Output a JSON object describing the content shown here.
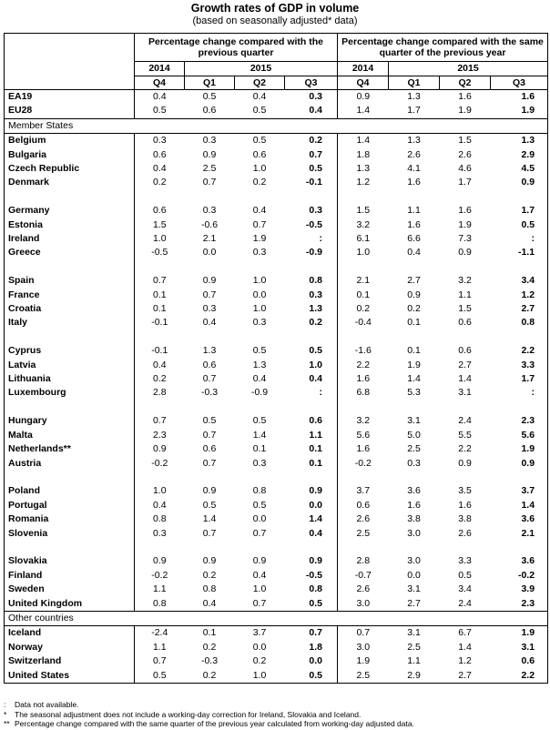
{
  "title": "Growth rates of GDP in volume",
  "subtitle": "(based on seasonally adjusted* data)",
  "header": {
    "group1": "Percentage change compared with the previous quarter",
    "group2": "Percentage change compared with the same quarter of the previous year",
    "year1": "2014",
    "year2": "2015",
    "quarters": [
      "Q4",
      "Q1",
      "Q2",
      "Q3",
      "Q4",
      "Q1",
      "Q2",
      "Q3"
    ]
  },
  "rows": [
    {
      "name": "EA19",
      "v": [
        "0.4",
        "0.5",
        "0.4",
        "0.3",
        "0.9",
        "1.3",
        "1.6",
        "1.6"
      ]
    },
    {
      "name": "EU28",
      "v": [
        "0.5",
        "0.6",
        "0.5",
        "0.4",
        "1.4",
        "1.7",
        "1.9",
        "1.9"
      ]
    },
    {
      "section": "Member States"
    },
    {
      "name": "Belgium",
      "v": [
        "0.3",
        "0.3",
        "0.5",
        "0.2",
        "1.4",
        "1.3",
        "1.5",
        "1.3"
      ]
    },
    {
      "name": "Bulgaria",
      "v": [
        "0.6",
        "0.9",
        "0.6",
        "0.7",
        "1.8",
        "2.6",
        "2.6",
        "2.9"
      ]
    },
    {
      "name": "Czech Republic",
      "v": [
        "0.4",
        "2.5",
        "1.0",
        "0.5",
        "1.3",
        "4.1",
        "4.6",
        "4.5"
      ]
    },
    {
      "name": "Denmark",
      "v": [
        "0.2",
        "0.7",
        "0.2",
        "-0.1",
        "1.2",
        "1.6",
        "1.7",
        "0.9"
      ]
    },
    {
      "blank": true
    },
    {
      "name": "Germany",
      "v": [
        "0.6",
        "0.3",
        "0.4",
        "0.3",
        "1.5",
        "1.1",
        "1.6",
        "1.7"
      ]
    },
    {
      "name": "Estonia",
      "v": [
        "1.5",
        "-0.6",
        "0.7",
        "-0.5",
        "3.2",
        "1.6",
        "1.9",
        "0.5"
      ]
    },
    {
      "name": "Ireland",
      "v": [
        "1.0",
        "2.1",
        "1.9",
        ":",
        "6.1",
        "6.6",
        "7.3",
        ":"
      ]
    },
    {
      "name": "Greece",
      "v": [
        "-0.5",
        "0.0",
        "0.3",
        "-0.9",
        "1.0",
        "0.4",
        "0.9",
        "-1.1"
      ]
    },
    {
      "blank": true
    },
    {
      "name": "Spain",
      "v": [
        "0.7",
        "0.9",
        "1.0",
        "0.8",
        "2.1",
        "2.7",
        "3.2",
        "3.4"
      ]
    },
    {
      "name": "France",
      "v": [
        "0.1",
        "0.7",
        "0.0",
        "0.3",
        "0.1",
        "0.9",
        "1.1",
        "1.2"
      ]
    },
    {
      "name": "Croatia",
      "v": [
        "0.1",
        "0.3",
        "1.0",
        "1.3",
        "0.2",
        "0.2",
        "1.5",
        "2.7"
      ]
    },
    {
      "name": "Italy",
      "v": [
        "-0.1",
        "0.4",
        "0.3",
        "0.2",
        "-0.4",
        "0.1",
        "0.6",
        "0.8"
      ]
    },
    {
      "blank": true
    },
    {
      "name": "Cyprus",
      "v": [
        "-0.1",
        "1.3",
        "0.5",
        "0.5",
        "-1.6",
        "0.1",
        "0.6",
        "2.2"
      ]
    },
    {
      "name": "Latvia",
      "v": [
        "0.4",
        "0.6",
        "1.3",
        "1.0",
        "2.2",
        "1.9",
        "2.7",
        "3.3"
      ]
    },
    {
      "name": "Lithuania",
      "v": [
        "0.2",
        "0.7",
        "0.4",
        "0.4",
        "1.6",
        "1.4",
        "1.4",
        "1.7"
      ]
    },
    {
      "name": "Luxembourg",
      "v": [
        "2.8",
        "-0.3",
        "-0.9",
        ":",
        "6.8",
        "5.3",
        "3.1",
        ":"
      ]
    },
    {
      "blank": true
    },
    {
      "name": "Hungary",
      "v": [
        "0.7",
        "0.5",
        "0.5",
        "0.6",
        "3.2",
        "3.1",
        "2.4",
        "2.3"
      ]
    },
    {
      "name": "Malta",
      "v": [
        "2.3",
        "0.7",
        "1.4",
        "1.1",
        "5.6",
        "5.0",
        "5.5",
        "5.6"
      ]
    },
    {
      "name": "Netherlands**",
      "v": [
        "0.9",
        "0.6",
        "0.1",
        "0.1",
        "1.6",
        "2.5",
        "2.2",
        "1.9"
      ]
    },
    {
      "name": "Austria",
      "v": [
        "-0.2",
        "0.7",
        "0.3",
        "0.1",
        "-0.2",
        "0.3",
        "0.9",
        "0.9"
      ]
    },
    {
      "blank": true
    },
    {
      "name": "Poland",
      "v": [
        "1.0",
        "0.9",
        "0.8",
        "0.9",
        "3.7",
        "3.6",
        "3.5",
        "3.7"
      ]
    },
    {
      "name": "Portugal",
      "v": [
        "0.4",
        "0.5",
        "0.5",
        "0.0",
        "0.6",
        "1.6",
        "1.6",
        "1.4"
      ]
    },
    {
      "name": "Romania",
      "v": [
        "0.8",
        "1.4",
        "0.0",
        "1.4",
        "2.6",
        "3.8",
        "3.8",
        "3.6"
      ]
    },
    {
      "name": "Slovenia",
      "v": [
        "0.3",
        "0.7",
        "0.7",
        "0.4",
        "2.5",
        "3.0",
        "2.6",
        "2.1"
      ]
    },
    {
      "blank": true
    },
    {
      "name": "Slovakia",
      "v": [
        "0.9",
        "0.9",
        "0.9",
        "0.9",
        "2.8",
        "3.0",
        "3.3",
        "3.6"
      ]
    },
    {
      "name": "Finland",
      "v": [
        "-0.2",
        "0.2",
        "0.4",
        "-0.5",
        "-0.7",
        "0.0",
        "0.5",
        "-0.2"
      ]
    },
    {
      "name": "Sweden",
      "v": [
        "1.1",
        "0.8",
        "1.0",
        "0.8",
        "2.6",
        "3.1",
        "3.4",
        "3.9"
      ]
    },
    {
      "name": "United Kingdom",
      "v": [
        "0.8",
        "0.4",
        "0.7",
        "0.5",
        "3.0",
        "2.7",
        "2.4",
        "2.3"
      ]
    },
    {
      "section": "Other countries"
    },
    {
      "name": "Iceland",
      "v": [
        "-2.4",
        "0.1",
        "3.7",
        "0.7",
        "0.7",
        "3.1",
        "6.7",
        "1.9"
      ]
    },
    {
      "name": "Norway",
      "v": [
        "1.1",
        "0.2",
        "0.0",
        "1.8",
        "3.0",
        "2.5",
        "1.4",
        "3.1"
      ]
    },
    {
      "name": "Switzerland",
      "v": [
        "0.7",
        "-0.3",
        "0.2",
        "0.0",
        "1.9",
        "1.1",
        "1.2",
        "0.6"
      ]
    },
    {
      "name": "United States",
      "v": [
        "0.5",
        "0.2",
        "1.0",
        "0.5",
        "2.5",
        "2.9",
        "2.7",
        "2.2"
      ]
    }
  ],
  "notes": [
    {
      "sym": ":",
      "text": "Data not available."
    },
    {
      "sym": "*",
      "text": "The seasonal adjustment does not include a working-day correction for Ireland, Slovakia and Iceland."
    },
    {
      "sym": "**",
      "text": "Percentage change compared with the same quarter of the previous year calculated from working-day adjusted data."
    }
  ]
}
